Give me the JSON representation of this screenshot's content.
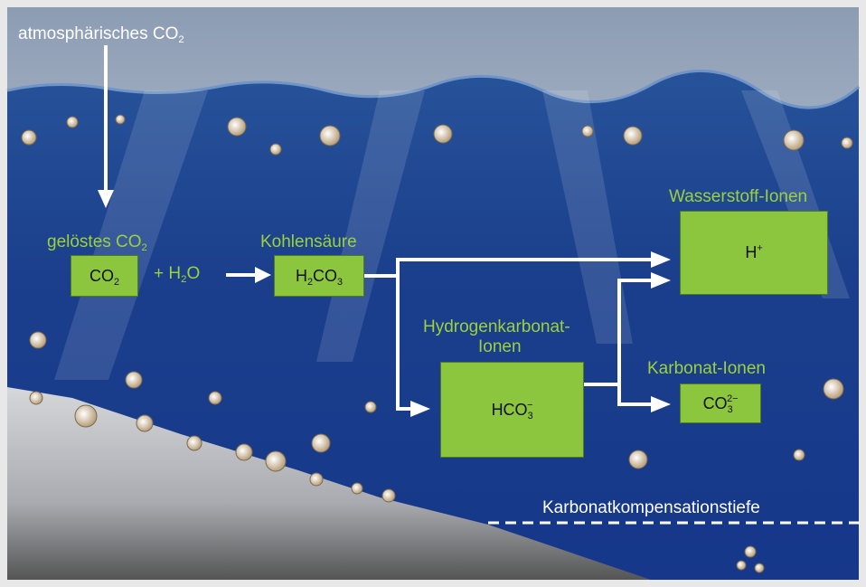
{
  "labels": {
    "atmospheric": [
      {
        "text": "atmosphärisches CO"
      },
      {
        "sub": "2"
      }
    ],
    "dissolved": [
      {
        "text": "gelöstes CO"
      },
      {
        "sub": "2"
      }
    ],
    "carbonic_acid": [
      {
        "text": "Kohlensäure"
      }
    ],
    "hydrogen_ions": [
      {
        "text": "Wasserstoff-Ionen"
      }
    ],
    "bicarbonate_line1": [
      {
        "text": "Hydrogenkarbonat-"
      }
    ],
    "bicarbonate_line2": [
      {
        "text": "Ionen"
      }
    ],
    "carbonate_ions": [
      {
        "text": "Karbonat-Ionen"
      }
    ],
    "ccd": [
      {
        "text": "Karbonatkompensationstiefe"
      }
    ]
  },
  "formulas": {
    "co2": [
      {
        "text": "CO"
      },
      {
        "sub": "2"
      }
    ],
    "water": [
      {
        "text": "+ H"
      },
      {
        "sub": "2"
      },
      {
        "text": "O"
      }
    ],
    "h2co3": [
      {
        "text": "H"
      },
      {
        "sub": "2"
      },
      {
        "text": "CO"
      },
      {
        "sub": "3"
      }
    ],
    "h_ion": [
      {
        "text": "H"
      },
      {
        "sup": "+"
      }
    ],
    "hco3": [
      {
        "text": "HCO"
      },
      {
        "sub": "3"
      },
      {
        "sup": "−"
      }
    ],
    "co3": [
      {
        "text": "CO"
      },
      {
        "sub": "3"
      },
      {
        "sup": "2−"
      }
    ]
  }
}
